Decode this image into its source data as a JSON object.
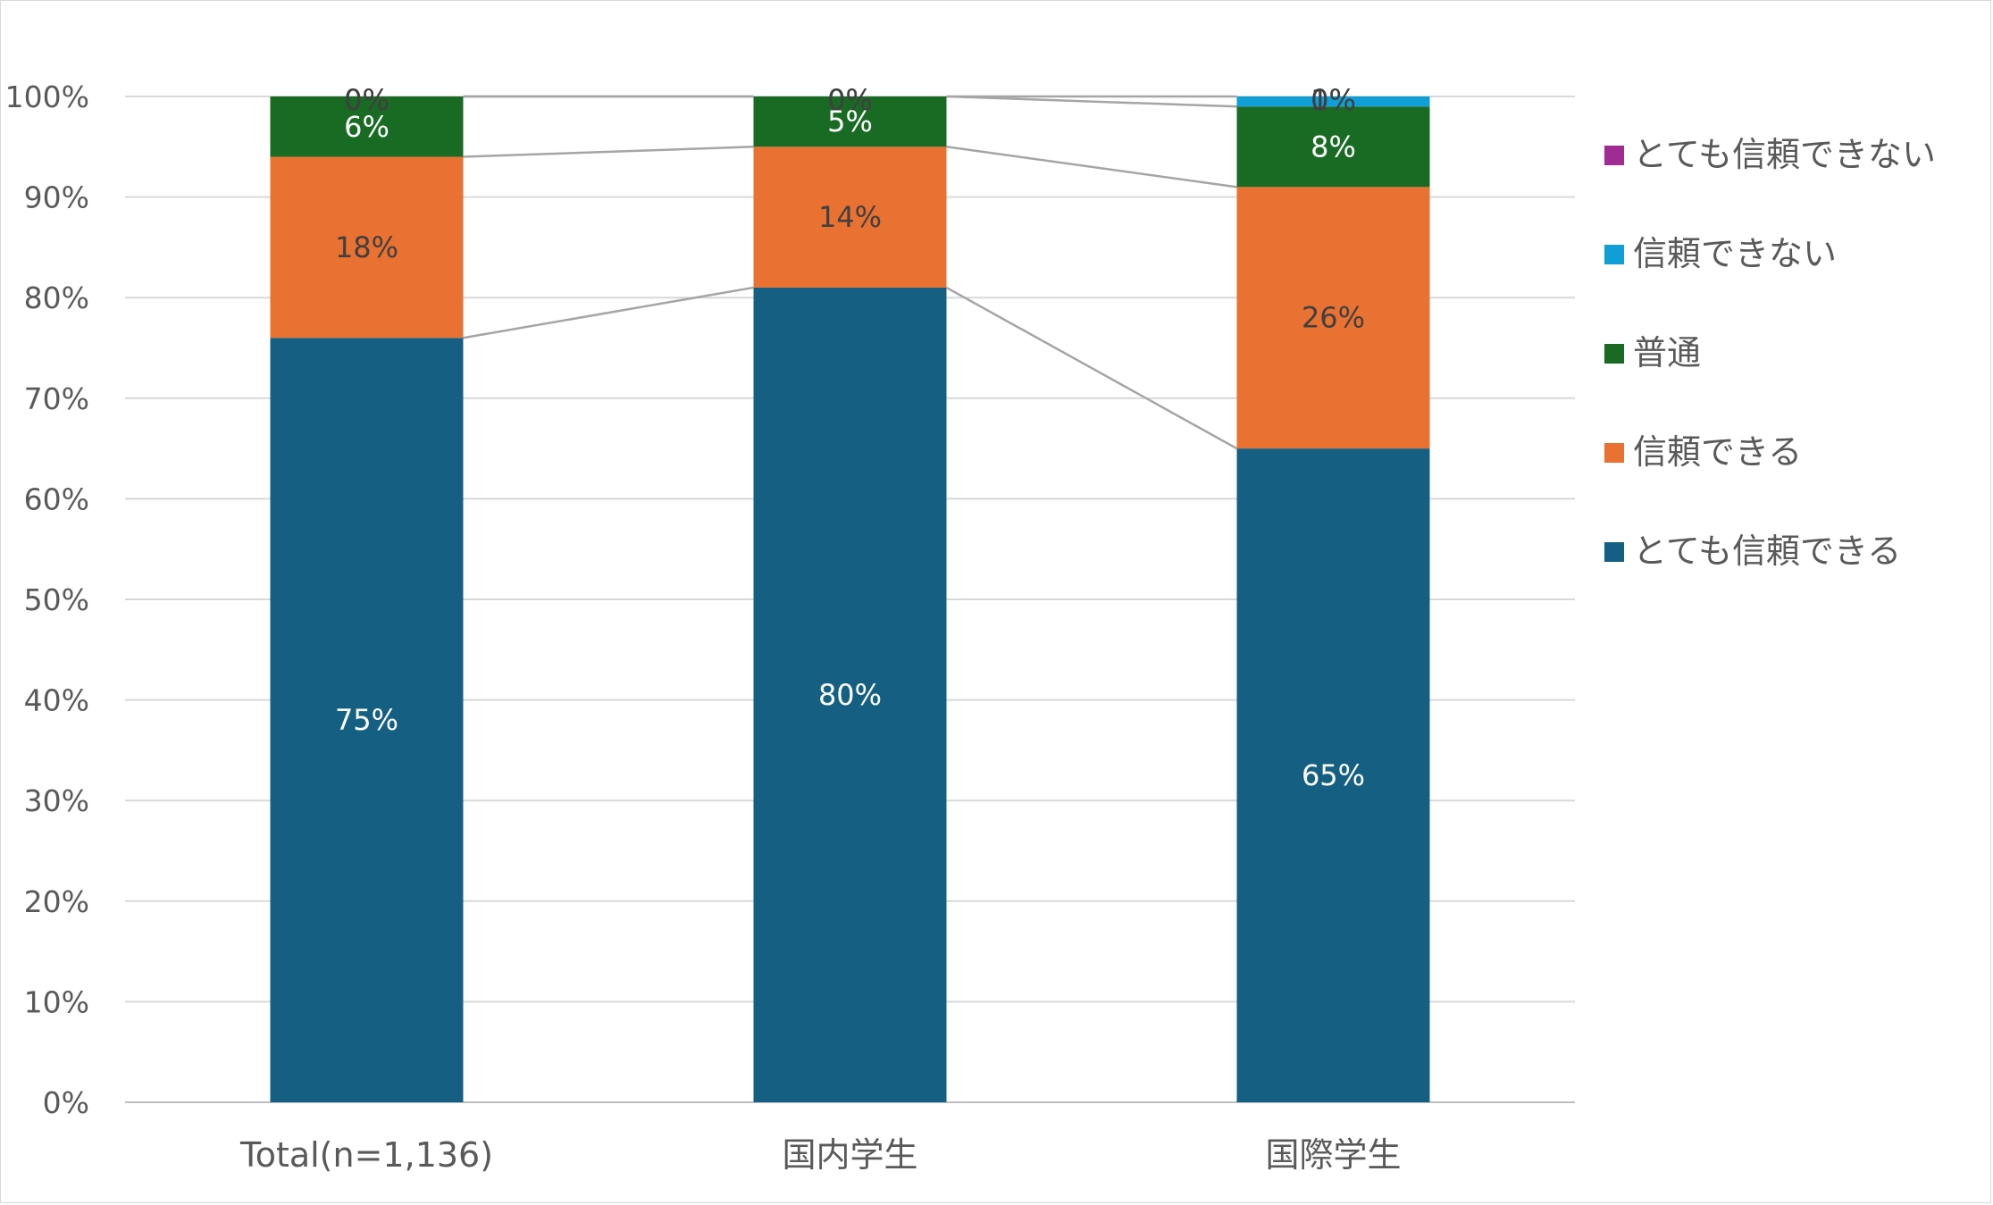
{
  "chart_data": {
    "type": "bar",
    "stacked": true,
    "percent": true,
    "categories": [
      "Total(n=1,136)",
      "国内学生",
      "国際学生"
    ],
    "series": [
      {
        "name": "とても信頼できる",
        "color": "#156082",
        "values": [
          75,
          80,
          65
        ],
        "labels": [
          "75%",
          "80%",
          "65%"
        ],
        "label_color": "#ffffff"
      },
      {
        "name": "信頼できる",
        "color": "#e97132",
        "values": [
          18,
          14,
          26
        ],
        "labels": [
          "18%",
          "14%",
          "26%"
        ],
        "label_color": "#404040"
      },
      {
        "name": "普通",
        "color": "#196b24",
        "values": [
          6,
          5,
          8
        ],
        "labels": [
          "6%",
          "5%",
          "8%"
        ],
        "label_color": "#ffffff"
      },
      {
        "name": "信頼できない",
        "color": "#0f9ed5",
        "values": [
          0,
          0,
          1
        ],
        "labels": [
          "0%",
          "0%",
          "1%"
        ],
        "label_color": "#404040"
      },
      {
        "name": "とても信頼できない",
        "color": "#a02b93",
        "values": [
          0,
          0,
          0
        ],
        "labels": [
          "0%",
          "0%",
          "0%"
        ],
        "label_color": "#404040"
      }
    ],
    "cumulative_bounds": [
      [
        0,
        76,
        94,
        100,
        100,
        100
      ],
      [
        0,
        81,
        95,
        100,
        100,
        100
      ],
      [
        0,
        65,
        91,
        99,
        100,
        100
      ]
    ],
    "y_ticks": [
      "0%",
      "10%",
      "20%",
      "30%",
      "40%",
      "50%",
      "60%",
      "70%",
      "80%",
      "90%",
      "100%"
    ],
    "ylim": [
      0,
      100
    ],
    "series_lines": true,
    "grid": true,
    "legend_position": "right",
    "title": "",
    "xlabel": "",
    "ylabel": ""
  }
}
